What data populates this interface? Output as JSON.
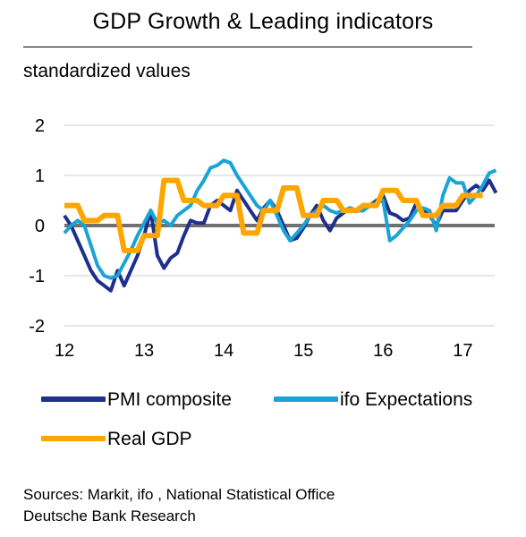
{
  "header": {
    "title": "GDP Growth & Leading indicators",
    "subtitle": "standardized values"
  },
  "footer": {
    "sources": "Sources: Markit, ifo , National Statistical Office",
    "publisher": "Deutsche Bank Research"
  },
  "colors": {
    "pmi": "#1f2f8c",
    "ifo": "#1ba3d6",
    "gdp": "#ffa500",
    "zero_line": "#707070",
    "grid": "#cfcfcf"
  },
  "chart_data": {
    "type": "line",
    "title": "GDP Growth & Leading indicators",
    "ylabel": "standardized values",
    "ylim": [
      -2,
      2
    ],
    "xlim": [
      12,
      17.4
    ],
    "yticks": [
      2,
      1,
      0,
      -1,
      -2
    ],
    "xticks": [
      "12",
      "13",
      "14",
      "15",
      "16",
      "17"
    ],
    "grid": true,
    "legend": "bottom",
    "series": [
      {
        "name": "PMI composite",
        "color": "#1f2f8c",
        "x": [
          12.0,
          12.083,
          12.167,
          12.25,
          12.333,
          12.417,
          12.5,
          12.583,
          12.667,
          12.75,
          12.833,
          12.917,
          13.0,
          13.083,
          13.167,
          13.25,
          13.333,
          13.417,
          13.5,
          13.583,
          13.667,
          13.75,
          13.833,
          13.917,
          14.0,
          14.083,
          14.167,
          14.25,
          14.333,
          14.417,
          14.5,
          14.583,
          14.667,
          14.75,
          14.833,
          14.917,
          15.0,
          15.083,
          15.167,
          15.25,
          15.333,
          15.417,
          15.5,
          15.583,
          15.667,
          15.75,
          15.833,
          15.917,
          16.0,
          16.083,
          16.167,
          16.25,
          16.333,
          16.417,
          16.5,
          16.583,
          16.667,
          16.75,
          16.833,
          16.917,
          17.0,
          17.083,
          17.167,
          17.25,
          17.333,
          17.417
        ],
        "y": [
          0.2,
          0.0,
          -0.3,
          -0.6,
          -0.9,
          -1.1,
          -1.2,
          -1.3,
          -0.9,
          -1.2,
          -0.9,
          -0.6,
          -0.2,
          0.3,
          -0.6,
          -0.85,
          -0.65,
          -0.55,
          -0.2,
          0.1,
          0.05,
          0.05,
          0.4,
          0.5,
          0.4,
          0.3,
          0.7,
          0.5,
          0.3,
          0.1,
          0.35,
          0.5,
          0.3,
          0.0,
          -0.3,
          -0.25,
          -0.05,
          0.2,
          0.4,
          0.1,
          -0.1,
          0.15,
          0.25,
          0.35,
          0.3,
          0.3,
          0.4,
          0.5,
          0.6,
          0.25,
          0.2,
          0.1,
          0.15,
          0.45,
          0.3,
          0.2,
          0.0,
          0.3,
          0.3,
          0.3,
          0.5,
          0.7,
          0.8,
          0.7,
          0.9,
          0.65
        ]
      },
      {
        "name": "ifo Expectations",
        "color": "#1ba3d6",
        "x": [
          12.0,
          12.083,
          12.167,
          12.25,
          12.333,
          12.417,
          12.5,
          12.583,
          12.667,
          12.75,
          12.833,
          12.917,
          13.0,
          13.083,
          13.167,
          13.25,
          13.333,
          13.417,
          13.5,
          13.583,
          13.667,
          13.75,
          13.833,
          13.917,
          14.0,
          14.083,
          14.167,
          14.25,
          14.333,
          14.417,
          14.5,
          14.583,
          14.667,
          14.75,
          14.833,
          14.917,
          15.0,
          15.083,
          15.167,
          15.25,
          15.333,
          15.417,
          15.5,
          15.583,
          15.667,
          15.75,
          15.833,
          15.917,
          16.0,
          16.083,
          16.167,
          16.25,
          16.333,
          16.417,
          16.5,
          16.583,
          16.667,
          16.75,
          16.833,
          16.917,
          17.0,
          17.083,
          17.167,
          17.25,
          17.333,
          17.417
        ],
        "y": [
          -0.15,
          0.0,
          0.1,
          0.0,
          -0.4,
          -0.8,
          -1.0,
          -1.05,
          -1.0,
          -0.75,
          -0.5,
          -0.2,
          0.05,
          0.3,
          0.05,
          0.1,
          0.0,
          0.2,
          0.3,
          0.4,
          0.7,
          0.9,
          1.15,
          1.2,
          1.3,
          1.25,
          1.0,
          0.8,
          0.6,
          0.4,
          0.3,
          0.5,
          0.2,
          -0.1,
          -0.3,
          -0.15,
          0.0,
          0.2,
          0.3,
          0.4,
          0.3,
          0.25,
          0.3,
          0.35,
          0.3,
          0.3,
          0.4,
          0.45,
          0.5,
          -0.3,
          -0.2,
          -0.05,
          0.1,
          0.3,
          0.35,
          0.3,
          -0.1,
          0.6,
          0.95,
          0.85,
          0.85,
          0.45,
          0.6,
          0.8,
          1.05,
          1.1
        ]
      },
      {
        "name": "Real GDP",
        "color": "#ffa500",
        "x": [
          12.0,
          12.083,
          12.167,
          12.25,
          12.333,
          12.417,
          12.5,
          12.583,
          12.667,
          12.75,
          12.833,
          12.917,
          13.0,
          13.083,
          13.167,
          13.25,
          13.333,
          13.417,
          13.5,
          13.583,
          13.667,
          13.75,
          13.833,
          13.917,
          14.0,
          14.083,
          14.167,
          14.25,
          14.333,
          14.417,
          14.5,
          14.583,
          14.667,
          14.75,
          14.833,
          14.917,
          15.0,
          15.083,
          15.167,
          15.25,
          15.333,
          15.417,
          15.5,
          15.583,
          15.667,
          15.75,
          15.833,
          15.917,
          16.0,
          16.083,
          16.167,
          16.25,
          16.333,
          16.417,
          16.5,
          16.583,
          16.667,
          16.75,
          16.833,
          16.917,
          17.0,
          17.083,
          17.167,
          17.25
        ],
        "y": [
          0.4,
          0.4,
          0.4,
          0.1,
          0.1,
          0.1,
          0.2,
          0.2,
          0.2,
          -0.5,
          -0.5,
          -0.5,
          -0.2,
          -0.2,
          -0.2,
          0.9,
          0.9,
          0.9,
          0.5,
          0.5,
          0.5,
          0.4,
          0.4,
          0.4,
          0.6,
          0.6,
          0.6,
          -0.15,
          -0.15,
          -0.15,
          0.3,
          0.3,
          0.3,
          0.75,
          0.75,
          0.75,
          0.2,
          0.2,
          0.2,
          0.5,
          0.5,
          0.5,
          0.3,
          0.3,
          0.3,
          0.4,
          0.4,
          0.4,
          0.7,
          0.7,
          0.7,
          0.5,
          0.5,
          0.5,
          0.2,
          0.2,
          0.2,
          0.4,
          0.4,
          0.4,
          0.6,
          0.6,
          0.6,
          0.6
        ]
      }
    ]
  }
}
